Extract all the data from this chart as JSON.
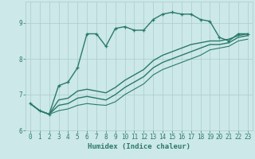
{
  "title": "",
  "xlabel": "Humidex (Indice chaleur)",
  "background_color": "#cce8e8",
  "grid_color": "#aacccc",
  "line_color": "#2a7a6a",
  "xlim": [
    -0.5,
    23.5
  ],
  "ylim": [
    6.0,
    9.6
  ],
  "yticks": [
    6,
    7,
    8,
    9
  ],
  "xticks": [
    0,
    1,
    2,
    3,
    4,
    5,
    6,
    7,
    8,
    9,
    10,
    11,
    12,
    13,
    14,
    15,
    16,
    17,
    18,
    19,
    20,
    21,
    22,
    23
  ],
  "series": [
    {
      "x": [
        0,
        1,
        2,
        3,
        4,
        5,
        6,
        7,
        8,
        9,
        10,
        11,
        12,
        13,
        14,
        15,
        16,
        17,
        18,
        19,
        20,
        21,
        22,
        23
      ],
      "y": [
        6.75,
        6.55,
        6.45,
        7.25,
        7.35,
        7.75,
        8.7,
        8.7,
        8.35,
        8.85,
        8.9,
        8.8,
        8.8,
        9.1,
        9.25,
        9.3,
        9.25,
        9.25,
        9.1,
        9.05,
        8.6,
        8.5,
        8.7,
        8.7
      ],
      "marker": "+",
      "linestyle": "-",
      "linewidth": 1.0
    },
    {
      "x": [
        0,
        1,
        2,
        3,
        4,
        5,
        6,
        7,
        8,
        9,
        10,
        11,
        12,
        13,
        14,
        15,
        16,
        17,
        18,
        19,
        20,
        21,
        22,
        23
      ],
      "y": [
        6.75,
        6.55,
        6.45,
        6.85,
        6.9,
        7.1,
        7.15,
        7.1,
        7.05,
        7.2,
        7.4,
        7.55,
        7.7,
        7.95,
        8.1,
        8.2,
        8.3,
        8.4,
        8.45,
        8.5,
        8.5,
        8.55,
        8.65,
        8.7
      ],
      "marker": null,
      "linestyle": "-",
      "linewidth": 1.0
    },
    {
      "x": [
        0,
        1,
        2,
        3,
        4,
        5,
        6,
        7,
        8,
        9,
        10,
        11,
        12,
        13,
        14,
        15,
        16,
        17,
        18,
        19,
        20,
        21,
        22,
        23
      ],
      "y": [
        6.75,
        6.55,
        6.45,
        6.7,
        6.75,
        6.9,
        6.95,
        6.9,
        6.85,
        7.0,
        7.2,
        7.35,
        7.5,
        7.75,
        7.9,
        8.0,
        8.1,
        8.2,
        8.3,
        8.4,
        8.4,
        8.45,
        8.6,
        8.65
      ],
      "marker": null,
      "linestyle": "-",
      "linewidth": 1.0
    },
    {
      "x": [
        0,
        1,
        2,
        3,
        4,
        5,
        6,
        7,
        8,
        9,
        10,
        11,
        12,
        13,
        14,
        15,
        16,
        17,
        18,
        19,
        20,
        21,
        22,
        23
      ],
      "y": [
        6.75,
        6.55,
        6.45,
        6.55,
        6.6,
        6.7,
        6.75,
        6.72,
        6.7,
        6.8,
        7.0,
        7.15,
        7.3,
        7.55,
        7.7,
        7.8,
        7.9,
        8.0,
        8.1,
        8.25,
        8.3,
        8.35,
        8.5,
        8.55
      ],
      "marker": null,
      "linestyle": "-",
      "linewidth": 0.8
    }
  ]
}
